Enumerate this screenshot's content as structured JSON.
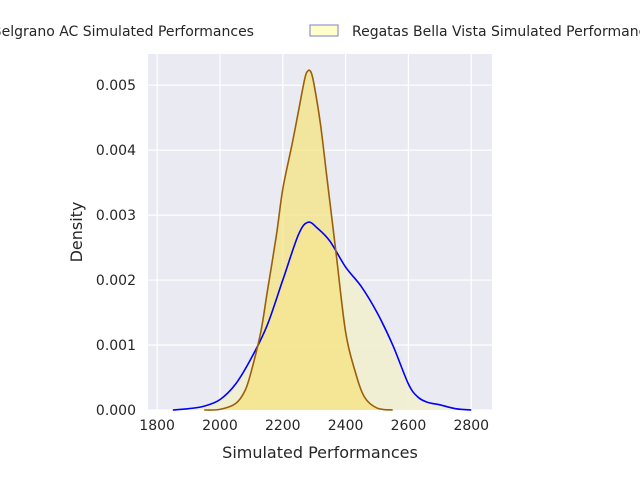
{
  "chart_data": {
    "type": "area",
    "xlabel": "Simulated Performances",
    "ylabel": "Density",
    "xlim": [
      1771,
      2866
    ],
    "ylim": [
      0,
      0.00548
    ],
    "xticks": [
      1800,
      2000,
      2200,
      2400,
      2600,
      2800
    ],
    "yticks": [
      0,
      0.001,
      0.002,
      0.003,
      0.004,
      0.005
    ],
    "ytick_labels": [
      "0.000",
      "0.001",
      "0.002",
      "0.003",
      "0.004",
      "0.005"
    ],
    "grid": true,
    "legend_placement": "top (outside, clipped)",
    "series": [
      {
        "name": "Belgrano AC Simulated Performances",
        "line_color": "#9a5f0a",
        "fill_color": "#f5e27a",
        "x": [
          1950,
          2000,
          2050,
          2080,
          2100,
          2130,
          2150,
          2180,
          2200,
          2230,
          2250,
          2270,
          2280,
          2290,
          2300,
          2320,
          2340,
          2370,
          2400,
          2430,
          2460,
          2500,
          2550
        ],
        "y": [
          0,
          1e-05,
          0.0001,
          0.0003,
          0.0006,
          0.0012,
          0.0018,
          0.0027,
          0.0034,
          0.0041,
          0.0046,
          0.0051,
          0.00522,
          0.0052,
          0.005,
          0.0044,
          0.0036,
          0.0024,
          0.0012,
          0.0006,
          0.0002,
          3e-05,
          0
        ]
      },
      {
        "name": "Regatas Bella Vista Simulated Performances",
        "line_color": "#0000ff",
        "fill_color": "#f2efcf",
        "x": [
          1850,
          1900,
          1950,
          2000,
          2050,
          2100,
          2150,
          2200,
          2250,
          2280,
          2310,
          2350,
          2400,
          2450,
          2500,
          2550,
          2600,
          2630,
          2660,
          2700,
          2750,
          2800
        ],
        "y": [
          0,
          2e-05,
          6e-05,
          0.00016,
          0.0004,
          0.0008,
          0.0013,
          0.002,
          0.0027,
          0.00289,
          0.0028,
          0.0026,
          0.0022,
          0.0019,
          0.0015,
          0.001,
          0.0004,
          0.0002,
          0.00012,
          8e-05,
          2e-05,
          0
        ]
      }
    ]
  }
}
